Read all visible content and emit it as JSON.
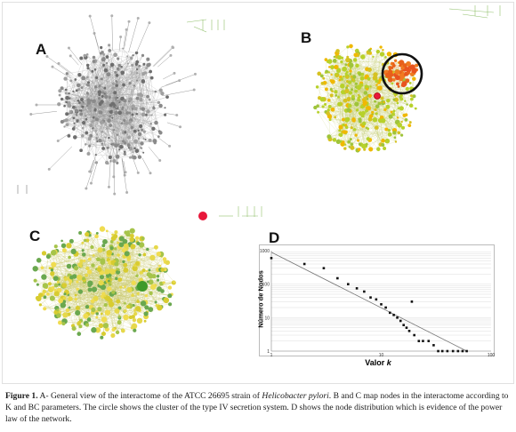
{
  "panels": {
    "a": "A",
    "b": "B",
    "c": "C",
    "d": "D"
  },
  "caption": {
    "figure_label": "Figure 1.",
    "text_part1": " A- General view of the interactome of the ATCC 26695 strain of ",
    "italic_species": "Helicobacter pylori",
    "text_part2": ". B and C map nodes in the interactome according to K and BC parameters. The circle shows the cluster of the type IV secretion system. D shows the node distribution which is evidence of the power law of the network."
  },
  "colors": {
    "network_a": "#7a7a7a",
    "network_b_high": "#e8531f",
    "network_b_mid": "#f0b800",
    "network_b_low": "#b7d12a",
    "network_c_green": "#6aa84f",
    "network_c_yellow": "#e6d84a",
    "red_node": "#e8173a"
  },
  "chart_data": {
    "type": "scatter",
    "xlabel_prefix": "Valor ",
    "xlabel_var": "k",
    "ylabel": "Número de Nodos",
    "x_scale": "log",
    "y_scale": "log",
    "xlim": [
      1,
      100
    ],
    "ylim": [
      1,
      1000
    ],
    "x_ticks": [
      "1",
      "10",
      "100"
    ],
    "y_ticks": [
      "1",
      "10",
      "100",
      "1000"
    ],
    "grid": "horizontal",
    "points": [
      [
        1,
        600
      ],
      [
        2,
        400
      ],
      [
        3,
        300
      ],
      [
        4,
        150
      ],
      [
        5,
        100
      ],
      [
        6,
        75
      ],
      [
        7,
        60
      ],
      [
        8,
        40
      ],
      [
        9,
        35
      ],
      [
        10,
        25
      ],
      [
        11,
        20
      ],
      [
        12,
        14
      ],
      [
        13,
        12
      ],
      [
        14,
        10
      ],
      [
        15,
        8
      ],
      [
        16,
        6
      ],
      [
        17,
        5
      ],
      [
        18,
        4
      ],
      [
        19,
        30
      ],
      [
        20,
        3
      ],
      [
        22,
        2
      ],
      [
        24,
        2
      ],
      [
        27,
        2
      ],
      [
        30,
        1.5
      ],
      [
        33,
        1
      ],
      [
        36,
        1
      ],
      [
        40,
        1
      ],
      [
        45,
        1
      ],
      [
        50,
        1
      ],
      [
        55,
        1
      ],
      [
        60,
        1
      ]
    ],
    "fit_line": [
      [
        1,
        900
      ],
      [
        60,
        1
      ]
    ]
  }
}
